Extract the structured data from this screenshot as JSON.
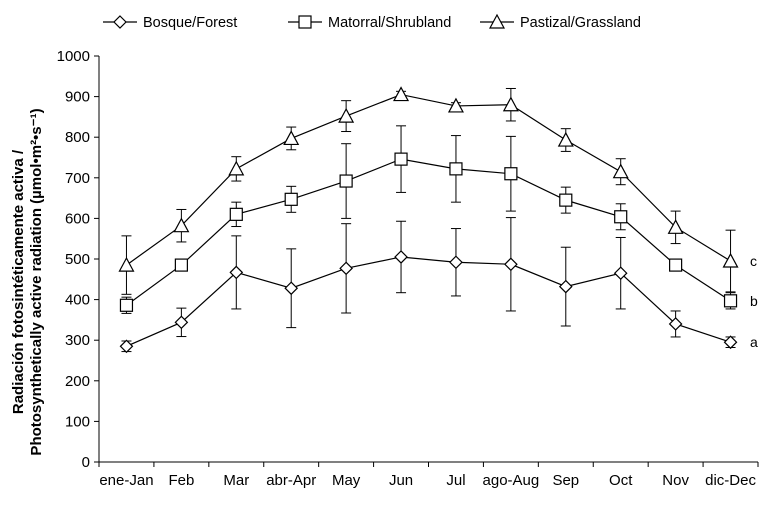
{
  "chart_data": {
    "type": "line",
    "ylabel_line1": "Radiación fotosintéticamente  activa /",
    "ylabel_line2": "Photosynthetically  active radiation (µmol•m²•s⁻¹)",
    "xlabel": "",
    "ylim": [
      0,
      1000
    ],
    "yticks": [
      0,
      100,
      200,
      300,
      400,
      500,
      600,
      700,
      800,
      900,
      1000
    ],
    "grid": false,
    "legend_position": "top",
    "categories": [
      "ene-Jan",
      "Feb",
      "Mar",
      "abr-Apr",
      "May",
      "Jun",
      "Jul",
      "ago-Aug",
      "Sep",
      "Oct",
      "Nov",
      "dic-Dec"
    ],
    "series": [
      {
        "name": "Bosque/Forest",
        "marker": "diamond",
        "values": [
          285,
          344,
          467,
          428,
          477,
          505,
          492,
          487,
          432,
          465,
          340,
          295
        ],
        "errors": [
          13,
          35,
          90,
          97,
          110,
          88,
          83,
          115,
          97,
          88,
          32,
          13
        ],
        "significance": "a"
      },
      {
        "name": "Matorral/Shrubland",
        "marker": "square",
        "values": [
          386,
          485,
          610,
          647,
          692,
          746,
          722,
          710,
          645,
          604,
          485,
          397
        ],
        "errors": [
          20,
          12,
          30,
          32,
          92,
          82,
          82,
          92,
          32,
          32,
          14,
          20
        ],
        "significance": "b"
      },
      {
        "name": "Pastizal/Grassland",
        "marker": "triangle",
        "values": [
          485,
          582,
          722,
          797,
          852,
          905,
          877,
          880,
          793,
          715,
          578,
          495
        ],
        "errors": [
          72,
          40,
          30,
          28,
          38,
          8,
          8,
          40,
          28,
          32,
          40,
          76
        ],
        "significance": "c"
      }
    ]
  }
}
